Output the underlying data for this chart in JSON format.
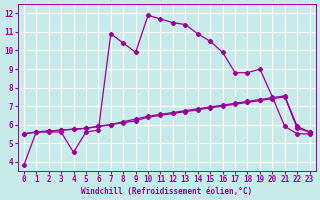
{
  "xlabel": "Windchill (Refroidissement éolien,°C)",
  "background_color": "#c8eaea",
  "grid_color": "#ffffff",
  "line_color": "#990099",
  "xlim": [
    -0.5,
    23.5
  ],
  "ylim": [
    3.5,
    12.5
  ],
  "xticks": [
    0,
    1,
    2,
    3,
    4,
    5,
    6,
    7,
    8,
    9,
    10,
    11,
    12,
    13,
    14,
    15,
    16,
    17,
    18,
    19,
    20,
    21,
    22,
    23
  ],
  "yticks": [
    4,
    5,
    6,
    7,
    8,
    9,
    10,
    11,
    12
  ],
  "line1_x": [
    0,
    1,
    2,
    3,
    4,
    5,
    6,
    7,
    8,
    9,
    10,
    11,
    12,
    13,
    14,
    15,
    16,
    17,
    18,
    19,
    20,
    21,
    22,
    23
  ],
  "line1_y": [
    3.8,
    5.6,
    5.6,
    5.6,
    4.5,
    5.6,
    5.7,
    10.9,
    10.4,
    9.9,
    11.9,
    11.7,
    11.5,
    11.4,
    10.9,
    10.5,
    9.9,
    8.8,
    8.8,
    9.0,
    7.5,
    5.9,
    5.5,
    5.5
  ],
  "line2_x": [
    0,
    1,
    2,
    3,
    4,
    5,
    6,
    7,
    8,
    9,
    10,
    11,
    12,
    13,
    14,
    15,
    16,
    17,
    18,
    19,
    20,
    21,
    22,
    23
  ],
  "line2_y": [
    5.5,
    5.6,
    5.65,
    5.7,
    5.75,
    5.8,
    5.9,
    6.0,
    6.1,
    6.2,
    6.4,
    6.5,
    6.6,
    6.7,
    6.8,
    6.9,
    7.0,
    7.1,
    7.2,
    7.3,
    7.4,
    7.5,
    5.8,
    5.6
  ],
  "line3_x": [
    0,
    1,
    2,
    3,
    4,
    5,
    6,
    7,
    8,
    9,
    10,
    11,
    12,
    13,
    14,
    15,
    16,
    17,
    18,
    19,
    20,
    21,
    22,
    23
  ],
  "line3_y": [
    5.5,
    5.6,
    5.65,
    5.7,
    5.75,
    5.8,
    5.9,
    6.0,
    6.15,
    6.3,
    6.45,
    6.55,
    6.65,
    6.75,
    6.85,
    6.95,
    7.05,
    7.15,
    7.25,
    7.35,
    7.45,
    7.55,
    5.9,
    5.6
  ]
}
